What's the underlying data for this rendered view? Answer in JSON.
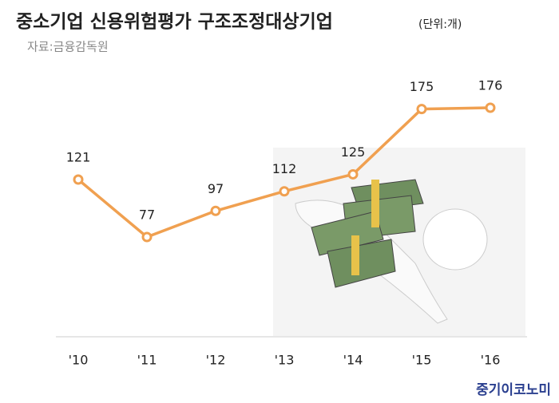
{
  "chart_data": {
    "type": "line",
    "title": "중소기업 신용위험평가 구조조정대상기업",
    "unit": "(단위:개)",
    "source": "자료:금융감독원",
    "brand": "중기이코노미",
    "categories": [
      "'10",
      "'11",
      "'12",
      "'13",
      "'14",
      "'15",
      "'16"
    ],
    "values": [
      121,
      77,
      97,
      112,
      125,
      175,
      176
    ],
    "color": "#f0a050"
  }
}
